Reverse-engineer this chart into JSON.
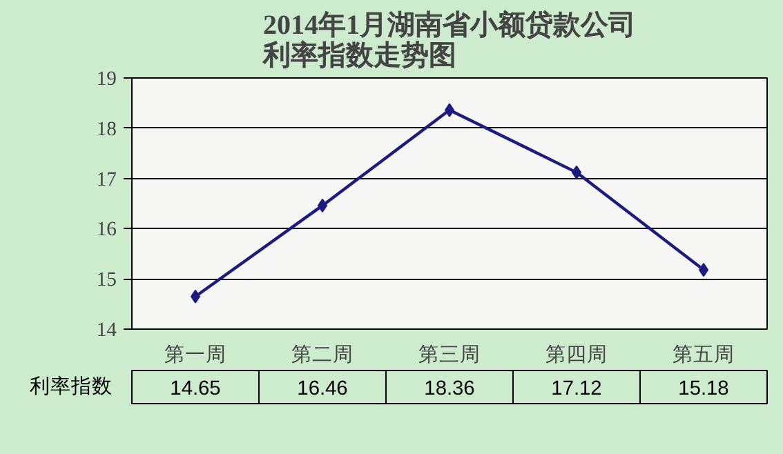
{
  "chart_data": {
    "type": "line",
    "title": "2014年1月湖南省小额贷款公司利率指数走势图",
    "categories": [
      "第一周",
      "第二周",
      "第三周",
      "第四周",
      "第五周"
    ],
    "series": [
      {
        "name": "利率指数",
        "color": "#1c1c80",
        "values": [
          14.65,
          16.46,
          18.36,
          17.12,
          15.18
        ]
      }
    ],
    "ylim": [
      14,
      19
    ],
    "yticks": [
      14,
      15,
      16,
      17,
      18,
      19
    ],
    "grid": "y",
    "marker": "diamond",
    "line_style": "solid",
    "data_labels": true
  }
}
